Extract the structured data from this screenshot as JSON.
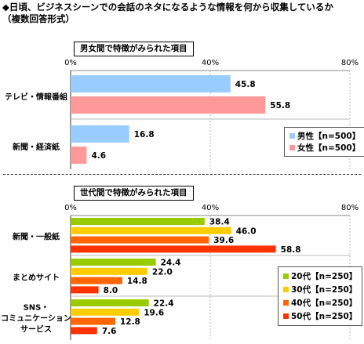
{
  "title": "◆日頃、ビジネスシーンでの会話のネタになるような情報を何から収集しているか\n（複数回答形式）",
  "colors": {
    "male": "#99ccff",
    "female": "#ff9999",
    "age20": "#99cc00",
    "age30": "#ffcc00",
    "age40": "#ff6600",
    "age50": "#ff3300"
  },
  "chart_data": [
    {
      "type": "bar",
      "orientation": "horizontal",
      "section_label": "男女間で特徴がみられた項目",
      "categories": [
        "テレビ・情報番組",
        "新聞・経済紙"
      ],
      "series": [
        {
          "name": "男性【n=500】",
          "values": [
            45.8,
            16.8
          ],
          "color": "#99ccff"
        },
        {
          "name": "女性【n=500】",
          "values": [
            55.8,
            4.6
          ],
          "color": "#ff9999"
        }
      ],
      "ticks": [
        "0%",
        "40%",
        "80%"
      ],
      "xlim": [
        0,
        80
      ],
      "legend_position": "bottom-right"
    },
    {
      "type": "bar",
      "orientation": "horizontal",
      "section_label": "世代間で特徴がみられた項目",
      "categories": [
        "新聞・一般紙",
        "まとめサイト",
        "SNS・\nコミュニケーション\nサービス"
      ],
      "series": [
        {
          "name": "20代【n=250】",
          "values": [
            38.4,
            24.4,
            22.4
          ],
          "color": "#99cc00"
        },
        {
          "name": "30代【n=250】",
          "values": [
            46.0,
            22.0,
            19.6
          ],
          "color": "#ffcc00"
        },
        {
          "name": "40代【n=250】",
          "values": [
            39.6,
            14.8,
            12.8
          ],
          "color": "#ff6600"
        },
        {
          "name": "50代【n=250】",
          "values": [
            58.8,
            8.0,
            7.6
          ],
          "color": "#ff3300"
        }
      ],
      "ticks": [
        "0%",
        "40%",
        "80%"
      ],
      "xlim": [
        0,
        80
      ],
      "legend_position": "bottom-right"
    }
  ]
}
